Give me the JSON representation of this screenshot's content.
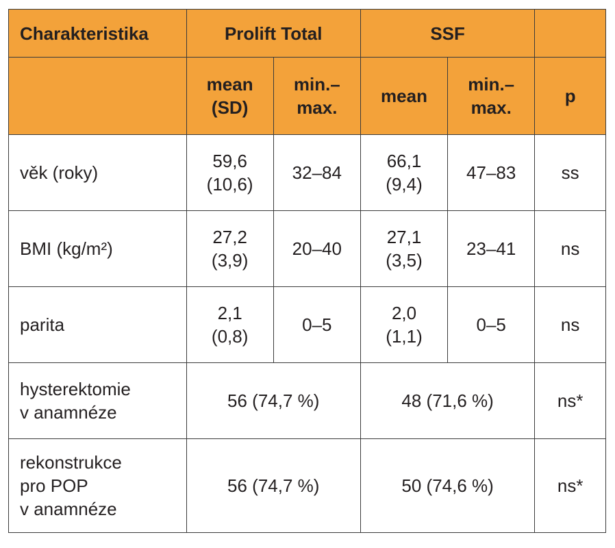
{
  "header": {
    "col_char": "Charakteristika",
    "group_prolift": "Prolift Total",
    "group_ssf": "SSF",
    "sub": {
      "mean_sd": [
        "mean",
        "(SD)"
      ],
      "minmax_a": [
        "min.–",
        "max."
      ],
      "mean": "mean",
      "minmax_b": [
        "min.–",
        "max."
      ],
      "p": "p"
    }
  },
  "rows": [
    {
      "label": [
        "věk (roky)"
      ],
      "prolift_mean": [
        "59,6",
        "(10,6)"
      ],
      "prolift_range": "32–84",
      "ssf_mean": [
        "66,1",
        "(9,4)"
      ],
      "ssf_range": "47–83",
      "p": "ss"
    },
    {
      "label": [
        "BMI (kg/m²)"
      ],
      "prolift_mean": [
        "27,2",
        "(3,9)"
      ],
      "prolift_range": "20–40",
      "ssf_mean": [
        "27,1",
        "(3,5)"
      ],
      "ssf_range": "23–41",
      "p": "ns"
    },
    {
      "label": [
        "parita"
      ],
      "prolift_mean": [
        "2,1",
        "(0,8)"
      ],
      "prolift_range": "0–5",
      "ssf_mean": [
        "2,0",
        "(1,1)"
      ],
      "ssf_range": "0–5",
      "p": "ns"
    },
    {
      "label": [
        "hysterektomie",
        "v anamnéze"
      ],
      "prolift_count": "56 (74,7 %)",
      "ssf_count": "48 (71,6 %)",
      "p": "ns*"
    },
    {
      "label": [
        "rekonstrukce",
        "pro POP",
        "v anamnéze"
      ],
      "prolift_count": "56 (74,7 %)",
      "ssf_count": "50 (74,6 %)",
      "p": "ns*"
    }
  ],
  "colors": {
    "header_bg": "#f3a23a",
    "border": "#3a3a3a",
    "text": "#231f20"
  }
}
